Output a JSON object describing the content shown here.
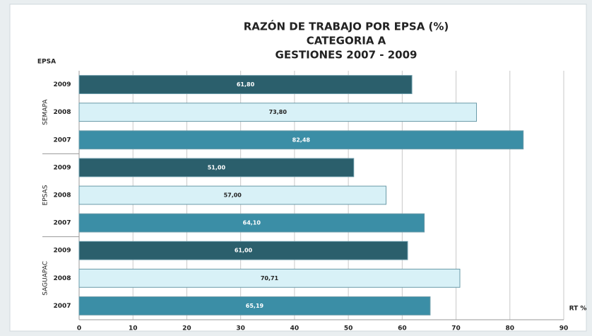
{
  "chart_data": {
    "type": "bar",
    "title": [
      "RAZÓN DE TRABAJO POR EPSA (%)",
      "CATEGORIA A",
      "GESTIONES 2007 - 2009"
    ],
    "y_axis_label": "EPSA",
    "x_axis_label": "RT %",
    "groups": [
      "SEMAPA",
      "EPSAS",
      "SAGUAPAC"
    ],
    "categories": [
      "2009",
      "2008",
      "2007",
      "2009",
      "2008",
      "2007",
      "2009",
      "2008",
      "2007"
    ],
    "values": [
      61.8,
      73.8,
      82.48,
      51.0,
      57.0,
      64.1,
      61.0,
      70.71,
      65.19
    ],
    "value_labels": [
      "61,80",
      "73,80",
      "82,48",
      "51,00",
      "57,00",
      "64,10",
      "61,00",
      "70,71",
      "65,19"
    ],
    "colors": [
      "#2b5f6c",
      "#d8f1f7",
      "#3b8ea6",
      "#2b5f6c",
      "#d8f1f7",
      "#3b8ea6",
      "#2b5f6c",
      "#d8f1f7",
      "#3b8ea6"
    ],
    "xlim": [
      0,
      90
    ],
    "xticks": [
      0,
      10,
      20,
      30,
      40,
      50,
      60,
      70,
      80,
      90
    ],
    "grid": true
  }
}
